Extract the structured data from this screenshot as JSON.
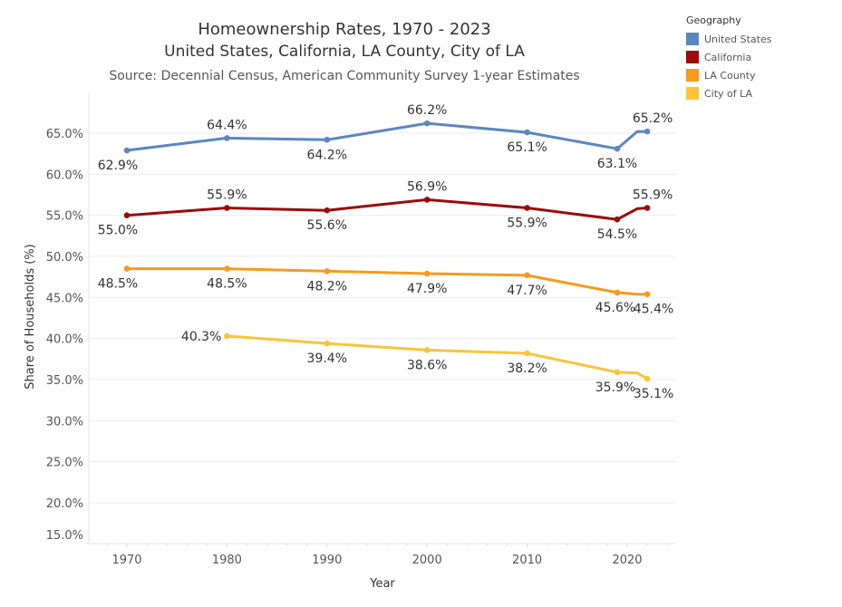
{
  "chart_data": {
    "type": "line",
    "title": "Homeownership Rates, 1970 - 2023",
    "subtitle": "United States, California, LA County, City of LA",
    "source": "Source: Decennial Census, American Community Survey 1-year Estimates",
    "xlabel": "Year",
    "ylabel": "Share of Households (%)",
    "xlim": [
      1967,
      2025
    ],
    "ylim": [
      14,
      69
    ],
    "x_ticks": [
      1970,
      1980,
      1990,
      2000,
      2010,
      2020
    ],
    "x_tick_labels": [
      "1970",
      "1980",
      "1990",
      "2000",
      "2010",
      "2020"
    ],
    "y_ticks": [
      15,
      20,
      25,
      30,
      35,
      40,
      45,
      50,
      55,
      60,
      65
    ],
    "y_tick_labels": [
      "15.0%",
      "20.0%",
      "25.0%",
      "30.0%",
      "35.0%",
      "40.0%",
      "45.0%",
      "50.0%",
      "55.0%",
      "60.0%",
      "65.0%"
    ],
    "grid": true,
    "legend": {
      "title": "Geography",
      "placement": "top-right"
    },
    "series": [
      {
        "name": "United States",
        "color": "#5B87BE",
        "points": [
          {
            "x": 1970,
            "y": 62.9,
            "label": "62.9%",
            "pos": "below"
          },
          {
            "x": 1980,
            "y": 64.4,
            "label": "64.4%",
            "pos": "above"
          },
          {
            "x": 1990,
            "y": 64.2,
            "label": "64.2%",
            "pos": "below"
          },
          {
            "x": 2000,
            "y": 66.2,
            "label": "66.2%",
            "pos": "above"
          },
          {
            "x": 2010,
            "y": 65.1,
            "label": "65.1%",
            "pos": "below"
          },
          {
            "x": 2019,
            "y": 63.1,
            "label": "63.1%",
            "pos": "below"
          },
          {
            "x": 2021,
            "y": 65.2,
            "label": "",
            "pos": "none"
          },
          {
            "x": 2022,
            "y": 65.2,
            "label": "65.2%",
            "pos": "above"
          }
        ]
      },
      {
        "name": "California",
        "color": "#9B0B0B",
        "points": [
          {
            "x": 1970,
            "y": 55.0,
            "label": "55.0%",
            "pos": "below"
          },
          {
            "x": 1980,
            "y": 55.9,
            "label": "55.9%",
            "pos": "above"
          },
          {
            "x": 1990,
            "y": 55.6,
            "label": "55.6%",
            "pos": "below"
          },
          {
            "x": 2000,
            "y": 56.9,
            "label": "56.9%",
            "pos": "above"
          },
          {
            "x": 2010,
            "y": 55.9,
            "label": "55.9%",
            "pos": "below"
          },
          {
            "x": 2019,
            "y": 54.5,
            "label": "54.5%",
            "pos": "below"
          },
          {
            "x": 2021,
            "y": 55.8,
            "label": "",
            "pos": "none"
          },
          {
            "x": 2022,
            "y": 55.9,
            "label": "55.9%",
            "pos": "above"
          }
        ]
      },
      {
        "name": "LA County",
        "color": "#F69B1E",
        "points": [
          {
            "x": 1970,
            "y": 48.5,
            "label": "48.5%",
            "pos": "below"
          },
          {
            "x": 1980,
            "y": 48.5,
            "label": "48.5%",
            "pos": "below"
          },
          {
            "x": 1990,
            "y": 48.2,
            "label": "48.2%",
            "pos": "below"
          },
          {
            "x": 2000,
            "y": 47.9,
            "label": "47.9%",
            "pos": "below"
          },
          {
            "x": 2010,
            "y": 47.7,
            "label": "47.7%",
            "pos": "below"
          },
          {
            "x": 2019,
            "y": 45.6,
            "label": "45.6%",
            "pos": "below-left"
          },
          {
            "x": 2021,
            "y": 45.4,
            "label": "",
            "pos": "none"
          },
          {
            "x": 2022,
            "y": 45.4,
            "label": "45.4%",
            "pos": "below"
          }
        ]
      },
      {
        "name": "City of LA",
        "color": "#FBC43A",
        "points": [
          {
            "x": 1980,
            "y": 40.3,
            "label": "40.3%",
            "pos": "left"
          },
          {
            "x": 1990,
            "y": 39.4,
            "label": "39.4%",
            "pos": "below"
          },
          {
            "x": 2000,
            "y": 38.6,
            "label": "38.6%",
            "pos": "below"
          },
          {
            "x": 2010,
            "y": 38.2,
            "label": "38.2%",
            "pos": "below"
          },
          {
            "x": 2019,
            "y": 35.9,
            "label": "35.9%",
            "pos": "below-left"
          },
          {
            "x": 2021,
            "y": 35.8,
            "label": "",
            "pos": "none"
          },
          {
            "x": 2022,
            "y": 35.1,
            "label": "35.1%",
            "pos": "below"
          }
        ]
      }
    ]
  }
}
